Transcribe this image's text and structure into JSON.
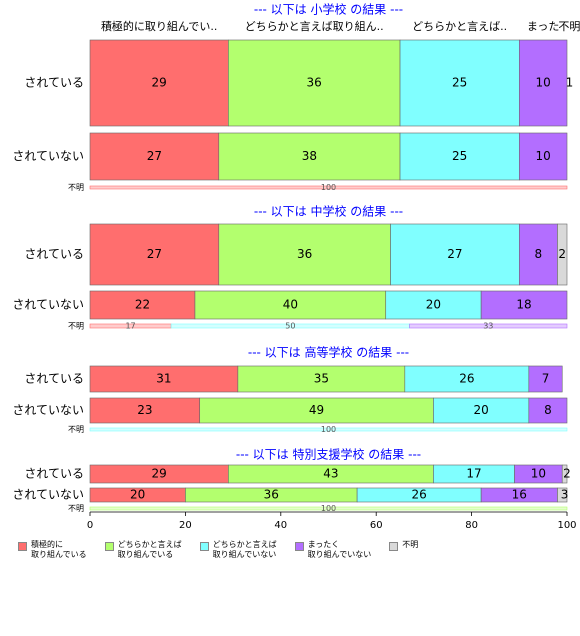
{
  "legend": {
    "names": [
      "積極的に\n取り組んでいる",
      "どちらかと言えば\n取り組んでいる",
      "どちらかと言えば\n取り組んでいない",
      "まったく\n取り組んでいない",
      "不明"
    ],
    "colors": [
      "#ff6e6e",
      "#b3ff6e",
      "#80ffff",
      "#b36eff",
      "#d9d9d9"
    ]
  },
  "chart_data": [
    {
      "type": "bar",
      "title": "--- 以下は 小学校 の結果 ---",
      "headers": [
        "積極的に取り組んでい..",
        "どちらかと言えば取り組ん..",
        "どちらかと言えば..",
        "まった",
        "不明"
      ],
      "categories": [
        "されている",
        "されていない",
        "不明"
      ],
      "series": [
        {
          "values": [
            29,
            27,
            100
          ]
        },
        {
          "values": [
            36,
            38,
            null
          ]
        },
        {
          "values": [
            25,
            25,
            null
          ]
        },
        {
          "values": [
            10,
            10,
            null
          ]
        },
        {
          "values": [
            1,
            null,
            null
          ]
        }
      ]
    },
    {
      "type": "bar",
      "title": "--- 以下は 中学校 の結果 ---",
      "categories": [
        "されている",
        "されていない",
        "不明"
      ],
      "series": [
        {
          "values": [
            27,
            22,
            17
          ]
        },
        {
          "values": [
            36,
            40,
            null
          ]
        },
        {
          "values": [
            27,
            20,
            50
          ]
        },
        {
          "values": [
            8,
            18,
            33
          ]
        },
        {
          "values": [
            2,
            null,
            null
          ]
        }
      ]
    },
    {
      "type": "bar",
      "title": "--- 以下は 高等学校 の結果 ---",
      "categories": [
        "されている",
        "されていない",
        "不明"
      ],
      "series": [
        {
          "values": [
            31,
            23,
            null
          ]
        },
        {
          "values": [
            35,
            49,
            null
          ]
        },
        {
          "values": [
            26,
            20,
            100
          ]
        },
        {
          "values": [
            7,
            8,
            null
          ]
        },
        {
          "values": [
            null,
            null,
            null
          ]
        }
      ]
    },
    {
      "type": "bar",
      "title": "--- 以下は 特別支援学校 の結果 ---",
      "categories": [
        "されている",
        "されていない",
        "不明"
      ],
      "series": [
        {
          "values": [
            29,
            20,
            null
          ]
        },
        {
          "values": [
            43,
            36,
            100
          ]
        },
        {
          "values": [
            17,
            26,
            null
          ]
        },
        {
          "values": [
            10,
            16,
            null
          ]
        },
        {
          "values": [
            2,
            3,
            null
          ]
        }
      ],
      "xlim": [
        0,
        100
      ],
      "xticks": [
        0,
        20,
        40,
        60,
        80,
        100
      ]
    }
  ]
}
